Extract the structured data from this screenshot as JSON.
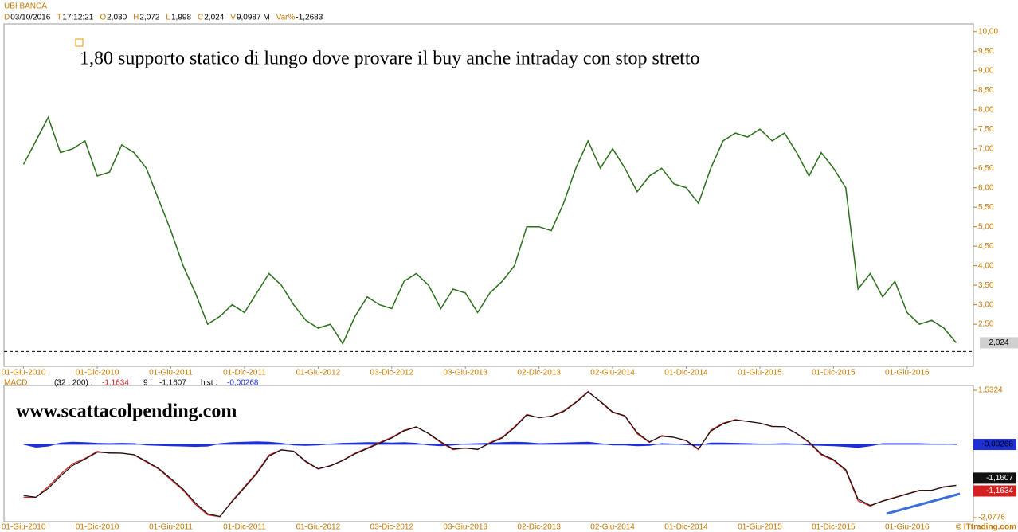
{
  "header": {
    "title": "UBI BANCA",
    "fields": [
      {
        "key": "D",
        "value": "03/10/2016"
      },
      {
        "key": "T",
        "value": "17:12:21"
      },
      {
        "key": "O",
        "value": "2,030"
      },
      {
        "key": "H",
        "value": "2,072"
      },
      {
        "key": "L",
        "value": "1,998"
      },
      {
        "key": "C",
        "value": "2,024"
      },
      {
        "key": "V",
        "value": "9,0987 M"
      },
      {
        "key": "Var%",
        "value": "-1,2683"
      }
    ],
    "website": "www.scattacolpending.com",
    "copyright": "© ITtrading.com"
  },
  "chart_data": [
    {
      "type": "line",
      "annotation": "1,80 supporto statico di lungo dove provare il buy anche intraday con stop stretto",
      "color": "#2a6e1a",
      "values": [
        6.6,
        7.2,
        7.8,
        6.9,
        7.0,
        7.2,
        6.3,
        6.4,
        7.1,
        6.9,
        6.5,
        5.7,
        4.9,
        4.0,
        3.3,
        2.5,
        2.7,
        3.0,
        2.8,
        3.3,
        3.8,
        3.5,
        3.0,
        2.6,
        2.4,
        2.5,
        2.0,
        2.7,
        3.2,
        3.0,
        2.9,
        3.6,
        3.8,
        3.5,
        2.9,
        3.4,
        3.3,
        2.8,
        3.3,
        3.6,
        4.0,
        5.0,
        5.0,
        4.9,
        5.6,
        6.5,
        7.2,
        6.5,
        7.0,
        6.5,
        5.9,
        6.3,
        6.5,
        6.1,
        6.0,
        5.6,
        6.5,
        7.2,
        7.4,
        7.3,
        7.5,
        7.2,
        7.4,
        6.9,
        6.3,
        6.9,
        6.5,
        6.0,
        3.4,
        3.8,
        3.2,
        3.6,
        2.8,
        2.5,
        2.6,
        2.4,
        2.024
      ],
      "last_label": "2,024",
      "support_level": 1.8,
      "xlim": [
        -1.6,
        77.4
      ],
      "ylim": [
        1.42,
        10.2
      ],
      "xticks": [
        {
          "value": 0,
          "label": "01-Giu-2010"
        },
        {
          "value": 6,
          "label": "01-Dic-2010"
        },
        {
          "value": 12,
          "label": "01-Giu-2011"
        },
        {
          "value": 18,
          "label": "01-Dic-2011"
        },
        {
          "value": 24,
          "label": "01-Giu-2012"
        },
        {
          "value": 30,
          "label": "03-Dic-2012"
        },
        {
          "value": 36,
          "label": "03-Giu-2013"
        },
        {
          "value": 42,
          "label": "02-Dic-2013"
        },
        {
          "value": 48,
          "label": "02-Giu-2014"
        },
        {
          "value": 54,
          "label": "01-Dic-2014"
        },
        {
          "value": 60,
          "label": "01-Giu-2015"
        },
        {
          "value": 66,
          "label": "01-Dic-2015"
        },
        {
          "value": 72,
          "label": "01-Giu-2016"
        }
      ],
      "yticks": [
        {
          "value": 10,
          "label": "10,00"
        },
        {
          "value": 9.5,
          "label": "9,50"
        },
        {
          "value": 9,
          "label": "9,00"
        },
        {
          "value": 8.5,
          "label": "8,50"
        },
        {
          "value": 8,
          "label": "8,00"
        },
        {
          "value": 7.5,
          "label": "7,50"
        },
        {
          "value": 7,
          "label": "7,00"
        },
        {
          "value": 6.5,
          "label": "6,50"
        },
        {
          "value": 6,
          "label": "6,00"
        },
        {
          "value": 5.5,
          "label": "5,50"
        },
        {
          "value": 5,
          "label": "5,00"
        },
        {
          "value": 4.5,
          "label": "4,50"
        },
        {
          "value": 4,
          "label": "4,00"
        },
        {
          "value": 3.5,
          "label": "3,50"
        },
        {
          "value": 3,
          "label": "3,00"
        },
        {
          "value": 2.5,
          "label": "2,50"
        }
      ]
    },
    {
      "type": "line",
      "title": "MACD",
      "ylim": [
        -2.19,
        1.668
      ],
      "yticks": [
        {
          "value": 1.5324,
          "label": "1,5324"
        },
        {
          "value": -2.0776,
          "label": "-2,0776"
        }
      ],
      "series": [
        {
          "name": "hist :",
          "color": "#1e2fd6",
          "area": true,
          "last_label": "-0,00268",
          "values": [
            0,
            -0.08,
            -0.05,
            0.04,
            0.06,
            0.05,
            0.03,
            0.02,
            0.03,
            0.02,
            -0.02,
            -0.03,
            -0.04,
            -0.05,
            -0.06,
            -0.05,
            0.02,
            0.05,
            0.06,
            0.07,
            0.06,
            0.03,
            -0.02,
            -0.03,
            -0.02,
            0.01,
            0.03,
            0.04,
            0.05,
            0.05,
            0.04,
            0.05,
            0.03,
            -0.02,
            -0.04,
            -0.02,
            0.01,
            0.02,
            0.03,
            0.05,
            0.06,
            0.05,
            0.02,
            0.03,
            0.04,
            0.05,
            0.06,
            0.02,
            -0.02,
            -0.02,
            -0.04,
            -0.03,
            0.02,
            0.01,
            -0.01,
            -0.03,
            0.04,
            0.04,
            0.03,
            0.02,
            0.01,
            0.01,
            0.02,
            0.01,
            -0.02,
            -0.03,
            -0.04,
            -0.06,
            -0.09,
            -0.04,
            0.02,
            0.02,
            0.02,
            0.02,
            0.01,
            0.01,
            -0.00268
          ]
        },
        {
          "name": "(32 , 200) :",
          "color": "#d42020",
          "last_label": "-1,1634",
          "values": [
            -1.5,
            -1.5,
            -1.2,
            -0.85,
            -0.55,
            -0.4,
            -0.2,
            -0.25,
            -0.25,
            -0.3,
            -0.5,
            -0.7,
            -1.0,
            -1.3,
            -1.7,
            -2.0,
            -2.05,
            -1.6,
            -1.2,
            -0.8,
            -0.3,
            -0.15,
            -0.2,
            -0.5,
            -0.7,
            -0.6,
            -0.45,
            -0.25,
            -0.1,
            0.05,
            0.2,
            0.4,
            0.5,
            0.3,
            0.05,
            -0.15,
            -0.1,
            -0.15,
            0.05,
            0.2,
            0.5,
            0.85,
            0.75,
            0.8,
            0.95,
            1.2,
            1.5,
            1.2,
            0.9,
            0.8,
            0.3,
            0.05,
            0.25,
            0.2,
            0.1,
            -0.15,
            0.4,
            0.6,
            0.7,
            0.65,
            0.6,
            0.5,
            0.5,
            0.3,
            0.05,
            -0.3,
            -0.45,
            -0.75,
            -1.6,
            -1.75,
            -1.6,
            -1.5,
            -1.4,
            -1.3,
            -1.3,
            -1.2,
            -1.1634
          ]
        },
        {
          "name": "9 :",
          "color": "#111111",
          "last_label": "-1,1607",
          "values": [
            -1.45,
            -1.5,
            -1.25,
            -0.9,
            -0.6,
            -0.42,
            -0.22,
            -0.24,
            -0.25,
            -0.29,
            -0.48,
            -0.68,
            -0.97,
            -1.27,
            -1.66,
            -1.97,
            -2.04,
            -1.62,
            -1.23,
            -0.83,
            -0.33,
            -0.16,
            -0.19,
            -0.48,
            -0.69,
            -0.61,
            -0.46,
            -0.27,
            -0.12,
            0.03,
            0.18,
            0.38,
            0.49,
            0.31,
            0.07,
            -0.13,
            -0.11,
            -0.14,
            0.03,
            0.18,
            0.47,
            0.83,
            0.76,
            0.79,
            0.93,
            1.18,
            1.48,
            1.22,
            0.92,
            0.81,
            0.33,
            0.07,
            0.23,
            0.2,
            0.11,
            -0.13,
            0.37,
            0.58,
            0.69,
            0.65,
            0.6,
            0.51,
            0.5,
            0.31,
            0.07,
            -0.27,
            -0.43,
            -0.72,
            -1.55,
            -1.73,
            -1.61,
            -1.51,
            -1.41,
            -1.31,
            -1.3,
            -1.21,
            -1.1607
          ]
        }
      ]
    }
  ]
}
